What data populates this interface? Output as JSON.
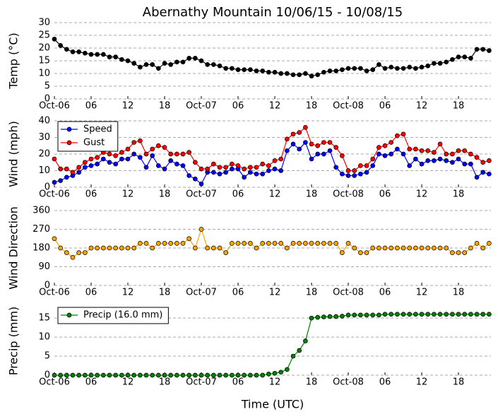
{
  "chart_data": [
    {
      "type": "line",
      "title": "Abernathy Mountain 10/06/15 - 10/08/15",
      "y_label": "Temp (°C)",
      "x": [
        0,
        1,
        2,
        3,
        4,
        5,
        6,
        7,
        8,
        9,
        10,
        11,
        12,
        13,
        14,
        15,
        16,
        17,
        18,
        19,
        20,
        21,
        22,
        23,
        24,
        25,
        26,
        27,
        28,
        29,
        30,
        31,
        32,
        33,
        34,
        35,
        36,
        37,
        38,
        39,
        40,
        41,
        42,
        43,
        44,
        45,
        46,
        47,
        48,
        49,
        50,
        51,
        52,
        53,
        54,
        55,
        56,
        57,
        58,
        59,
        60,
        61,
        62,
        63,
        64,
        65,
        66,
        67,
        68,
        69,
        70,
        71
      ],
      "series": [
        {
          "name": "Temp",
          "color": "#000000",
          "marker_color": "#000000",
          "values": [
            23.5,
            21,
            19.5,
            18.5,
            18.5,
            18,
            17.5,
            17.5,
            17.5,
            16.5,
            16.5,
            15.5,
            15,
            14,
            12.5,
            13.5,
            13.5,
            12,
            14,
            13.5,
            14.5,
            14.5,
            16,
            16,
            15,
            13.5,
            13.5,
            13,
            12,
            12,
            11.5,
            11.5,
            11.5,
            11,
            11,
            10.5,
            10.5,
            10,
            10,
            9.5,
            9.5,
            10,
            9,
            9.5,
            10.5,
            11,
            11,
            11.5,
            12,
            12,
            12,
            11,
            11.5,
            13.5,
            12,
            12.5,
            12,
            12,
            12.5,
            12,
            12.5,
            13,
            14,
            14,
            14.5,
            15.5,
            16.5,
            16.5,
            16,
            19.5,
            19.5,
            19
          ]
        }
      ],
      "xlim": [
        0,
        71.3
      ],
      "ylim": [
        0,
        30
      ],
      "yticks": [
        0,
        5,
        10,
        15,
        20,
        25,
        30
      ],
      "xticks": [
        {
          "value": 0,
          "label": "Oct-06"
        },
        {
          "value": 6,
          "label": "06"
        },
        {
          "value": 12,
          "label": "12"
        },
        {
          "value": 18,
          "label": "18"
        },
        {
          "value": 24,
          "label": "Oct-07"
        },
        {
          "value": 30,
          "label": "06"
        },
        {
          "value": 36,
          "label": "12"
        },
        {
          "value": 42,
          "label": "18"
        },
        {
          "value": 48,
          "label": "Oct-08"
        },
        {
          "value": 54,
          "label": "06"
        },
        {
          "value": 60,
          "label": "12"
        },
        {
          "value": 66,
          "label": "18"
        }
      ],
      "grid": true
    },
    {
      "type": "line",
      "y_label": "Wind (mph)",
      "legend": "upper left",
      "x": [
        0,
        1,
        2,
        3,
        4,
        5,
        6,
        7,
        8,
        9,
        10,
        11,
        12,
        13,
        14,
        15,
        16,
        17,
        18,
        19,
        20,
        21,
        22,
        23,
        24,
        25,
        26,
        27,
        28,
        29,
        30,
        31,
        32,
        33,
        34,
        35,
        36,
        37,
        38,
        39,
        40,
        41,
        42,
        43,
        44,
        45,
        46,
        47,
        48,
        49,
        50,
        51,
        52,
        53,
        54,
        55,
        56,
        57,
        58,
        59,
        60,
        61,
        62,
        63,
        64,
        65,
        66,
        67,
        68,
        69,
        70,
        71
      ],
      "series": [
        {
          "name": "Speed",
          "color": "#0000ff",
          "marker_color": "#0000ff",
          "values": [
            3,
            4,
            6,
            7,
            9,
            12,
            13,
            14,
            17,
            15,
            14,
            17,
            17,
            20,
            18,
            12,
            19,
            13,
            11,
            16,
            14,
            13,
            7,
            5,
            2,
            9,
            9,
            8,
            9,
            11,
            11,
            6,
            9,
            8,
            8,
            10,
            11,
            10,
            22,
            26,
            23,
            27,
            17,
            20,
            20,
            22,
            12,
            8,
            7,
            7,
            8,
            9,
            13,
            20,
            19,
            20,
            23,
            20,
            13,
            17,
            14,
            16,
            16,
            17,
            16,
            15,
            17,
            14,
            14,
            6,
            9,
            8
          ]
        },
        {
          "name": "Gust",
          "color": "#ff0000",
          "marker_color": "#ff0000",
          "values": [
            17,
            11,
            11,
            9,
            12,
            15,
            17,
            18,
            21,
            20,
            19,
            21,
            23,
            27,
            28,
            20,
            23,
            25,
            24,
            20,
            20,
            20,
            21,
            15,
            11,
            11,
            14,
            12,
            12,
            14,
            13,
            11,
            12,
            12,
            14,
            13,
            16,
            17,
            29,
            32,
            33,
            36,
            26,
            25,
            27,
            27,
            24,
            19,
            10,
            10,
            13,
            13,
            17,
            24,
            25,
            27,
            31,
            32,
            23,
            23,
            22,
            22,
            21,
            26,
            20,
            20,
            22,
            22,
            20,
            18,
            15,
            16
          ]
        }
      ],
      "xlim": [
        0,
        71.3
      ],
      "ylim": [
        0,
        40
      ],
      "yticks": [
        0,
        10,
        20,
        30,
        40
      ],
      "xticks": [
        {
          "value": 0,
          "label": "Oct-06"
        },
        {
          "value": 6,
          "label": "06"
        },
        {
          "value": 12,
          "label": "12"
        },
        {
          "value": 18,
          "label": "18"
        },
        {
          "value": 24,
          "label": "Oct-07"
        },
        {
          "value": 30,
          "label": "06"
        },
        {
          "value": 36,
          "label": "12"
        },
        {
          "value": 42,
          "label": "18"
        },
        {
          "value": 48,
          "label": "Oct-08"
        },
        {
          "value": 54,
          "label": "06"
        },
        {
          "value": 60,
          "label": "12"
        },
        {
          "value": 66,
          "label": "18"
        }
      ],
      "grid": true
    },
    {
      "type": "line",
      "y_label": "Wind Direction",
      "x": [
        0,
        1,
        2,
        3,
        4,
        5,
        6,
        7,
        8,
        9,
        10,
        11,
        12,
        13,
        14,
        15,
        16,
        17,
        18,
        19,
        20,
        21,
        22,
        23,
        24,
        25,
        26,
        27,
        28,
        29,
        30,
        31,
        32,
        33,
        34,
        35,
        36,
        37,
        38,
        39,
        40,
        41,
        42,
        43,
        44,
        45,
        46,
        47,
        48,
        49,
        50,
        51,
        52,
        53,
        54,
        55,
        56,
        57,
        58,
        59,
        60,
        61,
        62,
        63,
        64,
        65,
        66,
        67,
        68,
        69,
        70,
        71
      ],
      "series": [
        {
          "name": "Direction",
          "color": "#ffa500",
          "marker_color": "#ffa500",
          "values": [
            225,
            180,
            157.5,
            135,
            157.5,
            157.5,
            180,
            180,
            180,
            180,
            180,
            180,
            180,
            180,
            202.5,
            202.5,
            180,
            202.5,
            202.5,
            202.5,
            202.5,
            202.5,
            225,
            180,
            270,
            180,
            180,
            180,
            157.5,
            202.5,
            202.5,
            202.5,
            202.5,
            180,
            202.5,
            202.5,
            202.5,
            202.5,
            180,
            202.5,
            202.5,
            202.5,
            202.5,
            202.5,
            202.5,
            202.5,
            202.5,
            157.5,
            202.5,
            180,
            157.5,
            157.5,
            180,
            180,
            180,
            180,
            180,
            180,
            180,
            180,
            180,
            180,
            180,
            180,
            180,
            157.5,
            157.5,
            157.5,
            180,
            202.5,
            180,
            202.5
          ]
        }
      ],
      "xlim": [
        0,
        71.3
      ],
      "ylim": [
        0,
        360
      ],
      "yticks": [
        0,
        90,
        180,
        270,
        360
      ],
      "xticks": [
        {
          "value": 0,
          "label": "Oct-06"
        },
        {
          "value": 6,
          "label": "06"
        },
        {
          "value": 12,
          "label": "12"
        },
        {
          "value": 18,
          "label": "18"
        },
        {
          "value": 24,
          "label": "Oct-07"
        },
        {
          "value": 30,
          "label": "06"
        },
        {
          "value": 36,
          "label": "12"
        },
        {
          "value": 42,
          "label": "18"
        },
        {
          "value": 48,
          "label": "Oct-08"
        },
        {
          "value": 54,
          "label": "06"
        },
        {
          "value": 60,
          "label": "12"
        },
        {
          "value": 66,
          "label": "18"
        }
      ],
      "grid": true
    },
    {
      "type": "line",
      "y_label": "Precip (mm)",
      "x_label": "Time (UTC)",
      "legend": "upper left",
      "x": [
        0,
        1,
        2,
        3,
        4,
        5,
        6,
        7,
        8,
        9,
        10,
        11,
        12,
        13,
        14,
        15,
        16,
        17,
        18,
        19,
        20,
        21,
        22,
        23,
        24,
        25,
        26,
        27,
        28,
        29,
        30,
        31,
        32,
        33,
        34,
        35,
        36,
        37,
        38,
        39,
        40,
        41,
        42,
        43,
        44,
        45,
        46,
        47,
        48,
        49,
        50,
        51,
        52,
        53,
        54,
        55,
        56,
        57,
        58,
        59,
        60,
        61,
        62,
        63,
        64,
        65,
        66,
        67,
        68,
        69,
        70,
        71
      ],
      "series": [
        {
          "name": "Precip (16.0 mm)",
          "color": "#008000",
          "marker_color": "#008000",
          "values": [
            0,
            0,
            0,
            0,
            0,
            0,
            0,
            0,
            0,
            0,
            0,
            0,
            0,
            0,
            0,
            0,
            0,
            0,
            0,
            0,
            0,
            0,
            0,
            0,
            0,
            0,
            0,
            0,
            0,
            0,
            0,
            0,
            0,
            0,
            0,
            0.3,
            0.5,
            0.8,
            1.5,
            5,
            6.5,
            9,
            15,
            15.2,
            15.3,
            15.4,
            15.4,
            15.5,
            15.8,
            15.8,
            15.8,
            15.8,
            15.8,
            15.8,
            16,
            16,
            16,
            16,
            16,
            16,
            16,
            16,
            16,
            16,
            16,
            16,
            16,
            16,
            16,
            16,
            16,
            16
          ]
        }
      ],
      "xlim": [
        0,
        71.3
      ],
      "ylim": [
        0,
        18
      ],
      "yticks": [
        0,
        5,
        10,
        15
      ],
      "xticks": [
        {
          "value": 0,
          "label": "Oct-06"
        },
        {
          "value": 6,
          "label": "06"
        },
        {
          "value": 12,
          "label": "12"
        },
        {
          "value": 18,
          "label": "18"
        },
        {
          "value": 24,
          "label": "Oct-07"
        },
        {
          "value": 30,
          "label": "06"
        },
        {
          "value": 36,
          "label": "12"
        },
        {
          "value": 42,
          "label": "18"
        },
        {
          "value": 48,
          "label": "Oct-08"
        },
        {
          "value": 54,
          "label": "06"
        },
        {
          "value": 60,
          "label": "12"
        },
        {
          "value": 66,
          "label": "18"
        }
      ],
      "grid": true
    }
  ]
}
